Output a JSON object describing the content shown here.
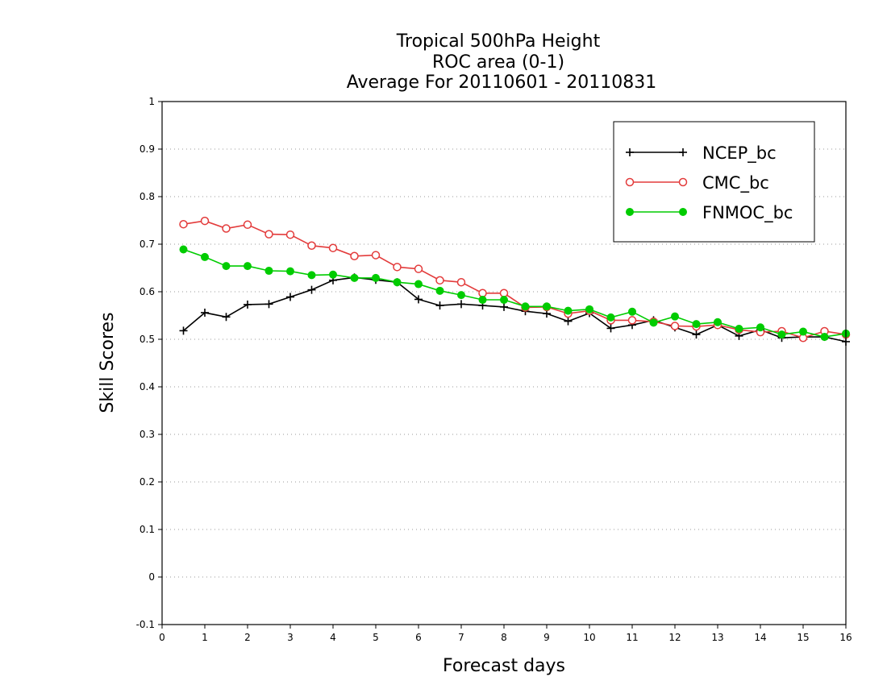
{
  "chart_data": {
    "type": "line",
    "title": [
      "Tropical 500hPa Height",
      "ROC area (0-1)",
      "Average For 20110601 - 20110831"
    ],
    "xlabel": "Forecast days",
    "ylabel": "Skill Scores",
    "xlim": [
      0,
      16
    ],
    "ylim": [
      -0.1,
      1
    ],
    "xticks": [
      0,
      1,
      2,
      3,
      4,
      5,
      6,
      7,
      8,
      9,
      10,
      11,
      12,
      13,
      14,
      15,
      16
    ],
    "xtick_labels": [
      "0",
      "1",
      "2",
      "3",
      "4",
      "5",
      "6",
      "7",
      "8",
      "9",
      "10",
      "11",
      "12",
      "13",
      "14",
      "15",
      "16"
    ],
    "yticks": [
      -0.1,
      0,
      0.1,
      0.2,
      0.3,
      0.4,
      0.5,
      0.6,
      0.7,
      0.8,
      0.9,
      1
    ],
    "ytick_labels": [
      "-0.1",
      "0",
      "0.1",
      "0.2",
      "0.3",
      "0.4",
      "0.5",
      "0.6",
      "0.7",
      "0.8",
      "0.9",
      "1"
    ],
    "grid": "horizontal dotted",
    "legend_position": "top-right",
    "x": [
      0.5,
      1,
      1.5,
      2,
      2.5,
      3,
      3.5,
      4,
      4.5,
      5,
      5.5,
      6,
      6.5,
      7,
      7.5,
      8,
      8.5,
      9,
      9.5,
      10,
      10.5,
      11,
      11.5,
      12,
      12.5,
      13,
      13.5,
      14,
      14.5,
      15,
      15.5,
      16
    ],
    "series": [
      {
        "name": "NCEP_bc",
        "color": "#000000",
        "marker": "plus",
        "values": [
          0.518,
          0.556,
          0.547,
          0.573,
          0.574,
          0.589,
          0.604,
          0.624,
          0.63,
          0.625,
          0.62,
          0.584,
          0.571,
          0.574,
          0.571,
          0.568,
          0.559,
          0.554,
          0.538,
          0.555,
          0.523,
          0.53,
          0.54,
          0.525,
          0.51,
          0.53,
          0.507,
          0.52,
          0.503,
          0.505,
          0.505,
          0.495
        ]
      },
      {
        "name": "CMC_bc",
        "color": "#e33b3b",
        "marker": "open-circle",
        "values": [
          0.742,
          0.749,
          0.733,
          0.741,
          0.721,
          0.72,
          0.697,
          0.692,
          0.675,
          0.677,
          0.652,
          0.648,
          0.624,
          0.62,
          0.597,
          0.597,
          0.567,
          0.568,
          0.554,
          0.56,
          0.54,
          0.54,
          0.537,
          0.528,
          0.527,
          0.53,
          0.52,
          0.515,
          0.517,
          0.503,
          0.517,
          0.51
        ]
      },
      {
        "name": "FNMOC_bc",
        "color": "#00cc00",
        "marker": "filled-circle",
        "values": [
          0.689,
          0.673,
          0.654,
          0.654,
          0.644,
          0.643,
          0.635,
          0.636,
          0.629,
          0.629,
          0.62,
          0.616,
          0.602,
          0.593,
          0.583,
          0.583,
          0.569,
          0.569,
          0.56,
          0.563,
          0.546,
          0.558,
          0.535,
          0.548,
          0.532,
          0.536,
          0.522,
          0.525,
          0.51,
          0.516,
          0.505,
          0.512
        ]
      }
    ]
  }
}
